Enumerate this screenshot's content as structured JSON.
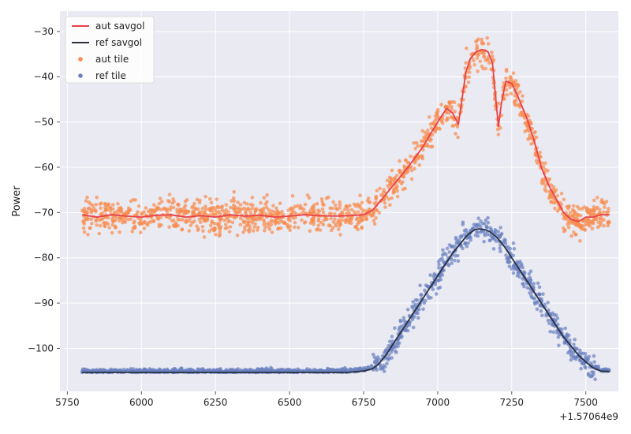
{
  "chart_data": {
    "type": "line",
    "title": "",
    "xlabel": "",
    "ylabel": "Power",
    "x_offset_label": "+1.57064e9",
    "xlim": [
      5725,
      7610
    ],
    "ylim": [
      -109.5,
      -25.5
    ],
    "xticks": [
      5750,
      6000,
      6250,
      6500,
      6750,
      7000,
      7250,
      7500
    ],
    "yticks": [
      -100,
      -90,
      -80,
      -70,
      -60,
      -50,
      -40,
      -30
    ],
    "xtick_labels": [
      "5750",
      "6000",
      "6250",
      "6500",
      "6750",
      "7000",
      "7250",
      "7500"
    ],
    "ytick_labels": [
      "−100",
      "−90",
      "−80",
      "−70",
      "−60",
      "−50",
      "−40",
      "−30"
    ],
    "grid": true,
    "legend_position": "upper-left",
    "series": [
      {
        "name": "aut savgol",
        "kind": "line",
        "color": "#e8414a",
        "x": [
          5800,
          5850,
          5900,
          5950,
          6000,
          6050,
          6100,
          6150,
          6200,
          6250,
          6300,
          6350,
          6400,
          6450,
          6500,
          6550,
          6600,
          6650,
          6700,
          6750,
          6780,
          6800,
          6850,
          6900,
          6950,
          7000,
          7030,
          7050,
          7070,
          7080,
          7095,
          7110,
          7130,
          7150,
          7170,
          7185,
          7195,
          7205,
          7215,
          7230,
          7250,
          7275,
          7300,
          7325,
          7350,
          7375,
          7400,
          7425,
          7450,
          7475,
          7500,
          7525,
          7550,
          7580
        ],
        "y": [
          -70.5,
          -71,
          -70.5,
          -70.8,
          -71,
          -70.6,
          -70.5,
          -71,
          -70.7,
          -71,
          -70.5,
          -70.8,
          -70.6,
          -71,
          -70.8,
          -70.5,
          -70.7,
          -70.8,
          -70.7,
          -70.5,
          -69.5,
          -68,
          -64,
          -60,
          -55.5,
          -50,
          -47,
          -48,
          -50.5,
          -46,
          -39,
          -36,
          -34.5,
          -34,
          -34.5,
          -37,
          -44,
          -51,
          -46,
          -41,
          -41.5,
          -45,
          -49,
          -54,
          -60,
          -64,
          -67,
          -70,
          -71.5,
          -72,
          -71,
          -71,
          -70.5,
          -70.5
        ]
      },
      {
        "name": "ref savgol",
        "kind": "line",
        "color": "#2a3040",
        "x": [
          5800,
          5900,
          6000,
          6100,
          6200,
          6300,
          6400,
          6500,
          6600,
          6700,
          6750,
          6780,
          6800,
          6825,
          6850,
          6875,
          6900,
          6925,
          6950,
          6975,
          7000,
          7025,
          7050,
          7075,
          7100,
          7125,
          7140,
          7160,
          7175,
          7200,
          7225,
          7250,
          7275,
          7300,
          7325,
          7350,
          7375,
          7400,
          7425,
          7450,
          7475,
          7500,
          7525,
          7550,
          7580
        ],
        "y": [
          -105.3,
          -105.3,
          -105.3,
          -105.3,
          -105.3,
          -105.3,
          -105.3,
          -105.3,
          -105.3,
          -105.3,
          -105,
          -104.5,
          -103.5,
          -101.5,
          -99,
          -96.5,
          -94,
          -91.5,
          -89,
          -86.5,
          -84,
          -81.5,
          -79,
          -77,
          -75,
          -73.8,
          -73.6,
          -73.8,
          -74.2,
          -75.5,
          -77.5,
          -80,
          -82.5,
          -85,
          -87.5,
          -90,
          -92.5,
          -95,
          -97.5,
          -99.5,
          -101.5,
          -103,
          -104.3,
          -105,
          -105.1
        ]
      },
      {
        "name": "aut tile",
        "kind": "scatter",
        "color": "#f88c4e",
        "follows": "aut savgol",
        "spread": 3.5
      },
      {
        "name": "ref tile",
        "kind": "scatter",
        "color": "#6b81c0",
        "follows": "ref savgol",
        "spread": 2.8
      }
    ]
  }
}
